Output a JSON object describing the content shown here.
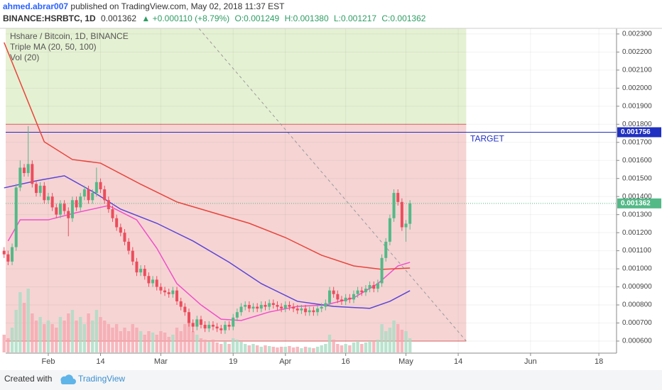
{
  "header": {
    "author": "ahmed.abrar007",
    "published": "published on TradingView.com, May 02, 2018 11:37 EST",
    "symbol": "BINANCE:HSRBTC, 1D",
    "last": "0.001362",
    "change": "▲ +0.000110 (+8.79%)",
    "open": "O:0.001249",
    "high": "H:0.001380",
    "low": "L:0.001217",
    "close": "C:0.001362"
  },
  "footer": {
    "created": "Created with",
    "brand": "TradingView"
  },
  "chart_data": {
    "type": "candlestick",
    "legend": [
      "Hshare / Bitcoin, 1D, BINANCE",
      "Triple MA (20, 50, 100)",
      "Vol (20)"
    ],
    "up_color": "#53b987",
    "down_color": "#eb4d5c",
    "up_volume_color": "#a9dcc3",
    "down_volume_color": "#f5a6ae",
    "grid": true,
    "xlim": [
      20.4,
      172.4
    ],
    "xticks": [
      {
        "value": 31,
        "label": "Feb"
      },
      {
        "value": 44,
        "label": "14"
      },
      {
        "value": 59,
        "label": "Mar"
      },
      {
        "value": 77,
        "label": "19"
      },
      {
        "value": 90,
        "label": "Apr"
      },
      {
        "value": 105,
        "label": "16"
      },
      {
        "value": 120,
        "label": "May"
      },
      {
        "value": 133,
        "label": "14"
      },
      {
        "value": 151,
        "label": "Jun"
      },
      {
        "value": 168,
        "label": "18"
      }
    ],
    "ylim": [
      0.000596,
      0.002331
    ],
    "yticks": [
      {
        "value": 0.0006,
        "label": "0.000600"
      },
      {
        "value": 0.0007,
        "label": "0.000700"
      },
      {
        "value": 0.0008,
        "label": "0.000800"
      },
      {
        "value": 0.0009,
        "label": "0.000900"
      },
      {
        "value": 0.001,
        "label": "0.001000"
      },
      {
        "value": 0.0011,
        "label": "0.001100"
      },
      {
        "value": 0.0012,
        "label": "0.001200"
      },
      {
        "value": 0.0013,
        "label": "0.001300"
      },
      {
        "value": 0.0014,
        "label": "0.001400"
      },
      {
        "value": 0.0015,
        "label": "0.001500"
      },
      {
        "value": 0.0016,
        "label": "0.001600"
      },
      {
        "value": 0.0017,
        "label": "0.001700"
      },
      {
        "value": 0.0018,
        "label": "0.001800"
      },
      {
        "value": 0.0019,
        "label": "0.001900"
      },
      {
        "value": 0.002,
        "label": "0.002000"
      },
      {
        "value": 0.0021,
        "label": "0.002100"
      },
      {
        "value": 0.0022,
        "label": "0.002200"
      },
      {
        "value": 0.0023,
        "label": "0.002300"
      }
    ],
    "x": [
      20,
      21,
      22,
      23,
      24,
      25,
      26,
      27,
      28,
      29,
      30,
      31,
      32,
      33,
      34,
      35,
      36,
      37,
      38,
      39,
      40,
      41,
      42,
      43,
      44,
      45,
      46,
      47,
      48,
      49,
      50,
      51,
      52,
      53,
      54,
      55,
      56,
      57,
      58,
      59,
      60,
      61,
      62,
      63,
      64,
      65,
      66,
      67,
      68,
      69,
      70,
      71,
      72,
      73,
      74,
      75,
      76,
      77,
      78,
      79,
      80,
      81,
      82,
      83,
      84,
      85,
      86,
      87,
      88,
      89,
      90,
      91,
      92,
      93,
      94,
      95,
      96,
      97,
      98,
      99,
      100,
      101,
      102,
      103,
      104,
      105,
      106,
      107,
      108,
      109,
      110,
      111,
      112,
      113,
      114,
      115,
      116,
      117,
      118,
      119,
      120,
      121
    ],
    "ohlc": [
      [
        0.0011,
        0.00112,
        0.00106,
        0.00108
      ],
      [
        0.00108,
        0.0011,
        0.00102,
        0.00104
      ],
      [
        0.00104,
        0.00114,
        0.00102,
        0.00112
      ],
      [
        0.00112,
        0.00147,
        0.0011,
        0.00145
      ],
      [
        0.00145,
        0.0016,
        0.00143,
        0.00156
      ],
      [
        0.00156,
        0.00158,
        0.00151,
        0.00153
      ],
      [
        0.00153,
        0.00179,
        0.00151,
        0.00158
      ],
      [
        0.00158,
        0.0016,
        0.00145,
        0.00147
      ],
      [
        0.00147,
        0.00149,
        0.0014,
        0.00142
      ],
      [
        0.00142,
        0.00148,
        0.0014,
        0.00146
      ],
      [
        0.00146,
        0.00148,
        0.00136,
        0.00138
      ],
      [
        0.00138,
        0.00142,
        0.00136,
        0.0014
      ],
      [
        0.0014,
        0.00142,
        0.00132,
        0.00134
      ],
      [
        0.00134,
        0.00136,
        0.00128,
        0.0013
      ],
      [
        0.0013,
        0.00138,
        0.00128,
        0.00136
      ],
      [
        0.00136,
        0.00138,
        0.0013,
        0.00132
      ],
      [
        0.00132,
        0.00134,
        0.00118,
        0.00128
      ],
      [
        0.00128,
        0.0014,
        0.00126,
        0.00138
      ],
      [
        0.00138,
        0.0014,
        0.00132,
        0.00134
      ],
      [
        0.00134,
        0.00142,
        0.00132,
        0.0014
      ],
      [
        0.0014,
        0.00146,
        0.00138,
        0.00144
      ],
      [
        0.00144,
        0.00146,
        0.00136,
        0.00138
      ],
      [
        0.00138,
        0.00144,
        0.00136,
        0.00142
      ],
      [
        0.00142,
        0.00156,
        0.0014,
        0.00148
      ],
      [
        0.00148,
        0.0015,
        0.00142,
        0.00144
      ],
      [
        0.00144,
        0.00146,
        0.00136,
        0.00138
      ],
      [
        0.00138,
        0.0014,
        0.00131,
        0.00133
      ],
      [
        0.00133,
        0.00135,
        0.00126,
        0.00128
      ],
      [
        0.00128,
        0.0013,
        0.00121,
        0.00123
      ],
      [
        0.00123,
        0.00125,
        0.00118,
        0.0012
      ],
      [
        0.0012,
        0.00122,
        0.00113,
        0.00115
      ],
      [
        0.00115,
        0.00117,
        0.00108,
        0.0011
      ],
      [
        0.0011,
        0.00112,
        0.00102,
        0.00104
      ],
      [
        0.00104,
        0.00106,
        0.00096,
        0.00098
      ],
      [
        0.00098,
        0.00102,
        0.00096,
        0.001
      ],
      [
        0.001,
        0.00102,
        0.00094,
        0.00096
      ],
      [
        0.00096,
        0.00098,
        0.0009,
        0.00092
      ],
      [
        0.00092,
        0.00096,
        0.0009,
        0.00094
      ],
      [
        0.00094,
        0.00096,
        0.00088,
        0.0009
      ],
      [
        0.0009,
        0.00092,
        0.00086,
        0.00088
      ],
      [
        0.00088,
        0.0009,
        0.00085,
        0.00087
      ],
      [
        0.00087,
        0.00089,
        0.00084,
        0.00086
      ],
      [
        0.00086,
        0.0009,
        0.00084,
        0.00088
      ],
      [
        0.00088,
        0.0009,
        0.0008,
        0.00082
      ],
      [
        0.00082,
        0.00084,
        0.00077,
        0.00079
      ],
      [
        0.00079,
        0.00081,
        0.00074,
        0.00076
      ],
      [
        0.00076,
        0.00078,
        0.00068,
        0.0007
      ],
      [
        0.0007,
        0.00072,
        0.00065,
        0.00068
      ],
      [
        0.00068,
        0.00074,
        0.00066,
        0.00072
      ],
      [
        0.00072,
        0.00074,
        0.00067,
        0.00069
      ],
      [
        0.00069,
        0.00071,
        0.00065,
        0.00067
      ],
      [
        0.00067,
        0.00071,
        0.00065,
        0.00069
      ],
      [
        0.00069,
        0.00071,
        0.00066,
        0.00068
      ],
      [
        0.00068,
        0.0007,
        0.00065,
        0.00067
      ],
      [
        0.00067,
        0.00069,
        0.00064,
        0.00066
      ],
      [
        0.00066,
        0.00071,
        0.00064,
        0.00069
      ],
      [
        0.00069,
        0.00071,
        0.00066,
        0.00068
      ],
      [
        0.00068,
        0.00075,
        0.00066,
        0.00073
      ],
      [
        0.00073,
        0.00078,
        0.00071,
        0.00076
      ],
      [
        0.00076,
        0.00081,
        0.00074,
        0.00079
      ],
      [
        0.00079,
        0.00082,
        0.00077,
        0.0008
      ],
      [
        0.0008,
        0.00082,
        0.00076,
        0.00078
      ],
      [
        0.00078,
        0.00081,
        0.00076,
        0.00079
      ],
      [
        0.00079,
        0.00081,
        0.00076,
        0.00078
      ],
      [
        0.00078,
        0.00082,
        0.00076,
        0.0008
      ],
      [
        0.0008,
        0.00082,
        0.00077,
        0.00079
      ],
      [
        0.00079,
        0.00083,
        0.00077,
        0.00081
      ],
      [
        0.00081,
        0.00083,
        0.00078,
        0.0008
      ],
      [
        0.0008,
        0.00082,
        0.00077,
        0.00079
      ],
      [
        0.00079,
        0.00081,
        0.00076,
        0.00078
      ],
      [
        0.00078,
        0.00082,
        0.00076,
        0.0008
      ],
      [
        0.0008,
        0.00082,
        0.00077,
        0.00079
      ],
      [
        0.00079,
        0.00081,
        0.00076,
        0.00078
      ],
      [
        0.00078,
        0.0008,
        0.00075,
        0.00077
      ],
      [
        0.00077,
        0.0008,
        0.00075,
        0.00078
      ],
      [
        0.00078,
        0.0008,
        0.00074,
        0.00076
      ],
      [
        0.00076,
        0.00079,
        0.00074,
        0.00077
      ],
      [
        0.00077,
        0.00079,
        0.00074,
        0.00076
      ],
      [
        0.00076,
        0.0008,
        0.00074,
        0.00078
      ],
      [
        0.00078,
        0.00081,
        0.00076,
        0.00079
      ],
      [
        0.00079,
        0.00083,
        0.00077,
        0.00081
      ],
      [
        0.00081,
        0.0009,
        0.00079,
        0.00088
      ],
      [
        0.00088,
        0.0009,
        0.00084,
        0.00086
      ],
      [
        0.00086,
        0.00088,
        0.00081,
        0.00083
      ],
      [
        0.00083,
        0.00085,
        0.0008,
        0.00082
      ],
      [
        0.00082,
        0.00086,
        0.0008,
        0.00084
      ],
      [
        0.00084,
        0.00086,
        0.00081,
        0.00083
      ],
      [
        0.00083,
        0.00088,
        0.00081,
        0.00086
      ],
      [
        0.00086,
        0.0009,
        0.00084,
        0.00088
      ],
      [
        0.00088,
        0.0009,
        0.00085,
        0.00087
      ],
      [
        0.00087,
        0.00091,
        0.00085,
        0.00089
      ],
      [
        0.00089,
        0.00093,
        0.00087,
        0.00091
      ],
      [
        0.00091,
        0.00093,
        0.00087,
        0.00089
      ],
      [
        0.00089,
        0.00094,
        0.00087,
        0.00092
      ],
      [
        0.00092,
        0.00108,
        0.0009,
        0.00106
      ],
      [
        0.00106,
        0.00117,
        0.00104,
        0.00115
      ],
      [
        0.00115,
        0.0013,
        0.00113,
        0.00128
      ],
      [
        0.00128,
        0.00144,
        0.00126,
        0.00142
      ],
      [
        0.00142,
        0.00144,
        0.00135,
        0.00137
      ],
      [
        0.00137,
        0.00139,
        0.00121,
        0.00123
      ],
      [
        0.00123,
        0.00127,
        0.00115,
        0.00125
      ],
      [
        0.001249,
        0.00138,
        0.001217,
        0.001362
      ]
    ],
    "volume": [
      25,
      20,
      35,
      60,
      85,
      70,
      90,
      55,
      45,
      50,
      40,
      45,
      40,
      35,
      50,
      45,
      55,
      60,
      45,
      50,
      40,
      55,
      45,
      60,
      50,
      45,
      40,
      35,
      40,
      30,
      35,
      30,
      40,
      35,
      30,
      25,
      30,
      28,
      25,
      30,
      28,
      22,
      25,
      35,
      30,
      40,
      45,
      30,
      25,
      20,
      18,
      15,
      18,
      14,
      12,
      15,
      12,
      20,
      18,
      15,
      12,
      10,
      12,
      10,
      8,
      10,
      9,
      8,
      7,
      8,
      8,
      9,
      7,
      8,
      6,
      8,
      7,
      6,
      8,
      10,
      12,
      25,
      18,
      12,
      10,
      12,
      10,
      14,
      16,
      12,
      14,
      16,
      15,
      18,
      40,
      30,
      35,
      45,
      40,
      32,
      30,
      20
    ],
    "volume_lim": [
      0,
      100
    ],
    "ma_lines": [
      {
        "color": "#f050c8",
        "x": [
          21,
          24,
          31,
          38,
          46,
          53,
          58,
          63,
          69,
          74,
          79,
          86,
          93,
          100,
          107,
          113,
          118,
          121
        ],
        "values": [
          0.001154,
          0.001271,
          0.001271,
          0.001311,
          0.00135,
          0.001271,
          0.001114,
          0.000918,
          0.0008,
          0.000721,
          0.000714,
          0.000761,
          0.000792,
          0.0008,
          0.000839,
          0.000918,
          0.001016,
          0.001036
        ]
      },
      {
        "color": "#5b45d6",
        "x": [
          20,
          28,
          35,
          42,
          49,
          58,
          67,
          76,
          84,
          93,
          102,
          111,
          116,
          121
        ],
        "values": [
          0.001448,
          0.001487,
          0.001515,
          0.001428,
          0.00133,
          0.001252,
          0.001154,
          0.001036,
          0.000918,
          0.00082,
          0.000792,
          0.000781,
          0.00082,
          0.000879
        ]
      },
      {
        "color": "#e8443a",
        "x": [
          20,
          30,
          37,
          44,
          54,
          63,
          72,
          81,
          90,
          99,
          107,
          114,
          121
        ],
        "values": [
          0.002253,
          0.001703,
          0.001605,
          0.001585,
          0.001468,
          0.00137,
          0.001311,
          0.001252,
          0.001173,
          0.001075,
          0.001016,
          0.000997,
          0.001004
        ]
      }
    ],
    "zones": {
      "x_end": 135,
      "levels": [
        0.0006,
        0.0018
      ],
      "upper_color": "#e5f1d3",
      "lower_color": "#f6d4d4",
      "edge_color": "#e06666"
    },
    "target": {
      "value": 0.001756,
      "label": "TARGET",
      "value_label": "0.001756",
      "color": "#2030c0"
    },
    "last": {
      "value": 0.001362,
      "value_label": "0.001362",
      "color": "#53b987"
    },
    "trendline": {
      "x": [
        68.5,
        135
      ],
      "y": [
        0.00233,
        0.0006
      ]
    }
  }
}
